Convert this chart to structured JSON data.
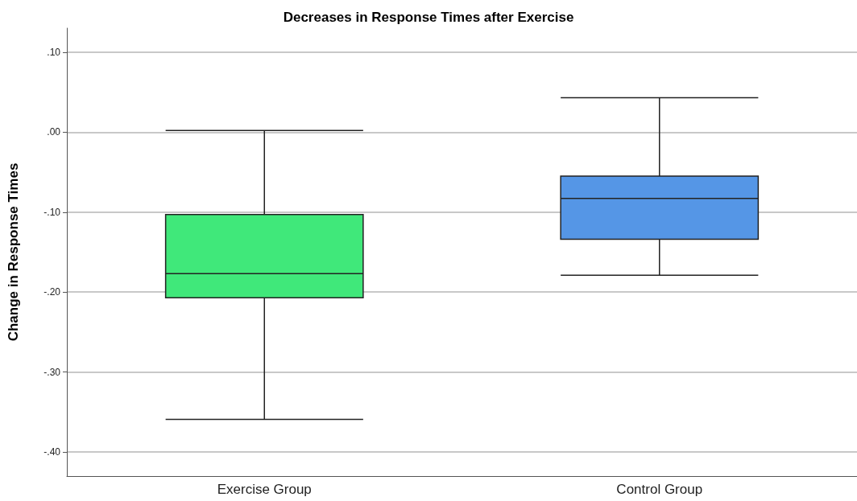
{
  "chart_data": {
    "type": "box",
    "title": "Decreases in Response Times after Exercise",
    "ylabel": "Change in Response Times",
    "categories": [
      "Exercise Group",
      "Control Group"
    ],
    "boxes": [
      {
        "low": -0.359,
        "q1": -0.207,
        "median": -0.177,
        "q3": -0.103,
        "high": 0.002
      },
      {
        "low": -0.179,
        "q1": -0.134,
        "median": -0.083,
        "q3": -0.055,
        "high": 0.043
      }
    ],
    "colors": [
      "#40e87a",
      "#5596e6"
    ],
    "ylim": [
      -0.43,
      0.13
    ],
    "yticks": [
      {
        "value": -0.4,
        "label": "-.40"
      },
      {
        "value": -0.3,
        "label": "-.30"
      },
      {
        "value": -0.2,
        "label": "-.20"
      },
      {
        "value": -0.1,
        "label": "-.10"
      },
      {
        "value": 0,
        "label": ".00"
      },
      {
        "value": 0.1,
        "label": ".10"
      }
    ],
    "grid": "y"
  }
}
